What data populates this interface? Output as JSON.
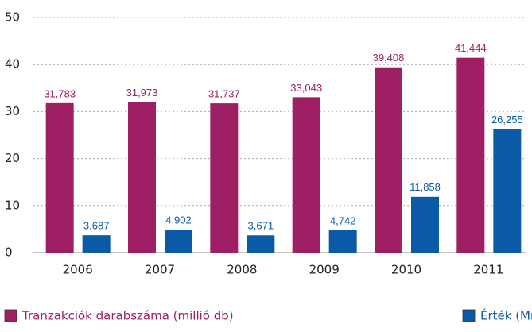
{
  "chart_data": {
    "type": "bar",
    "categories": [
      "2006",
      "2007",
      "2008",
      "2009",
      "2010",
      "2011"
    ],
    "series": [
      {
        "name": "Tranzakciók darabszáma (millió db)",
        "color": "#9e1f63",
        "values": [
          31.783,
          31.973,
          31.737,
          33.043,
          39.408,
          41.444
        ],
        "value_labels": [
          "31,783",
          "31,973",
          "31,737",
          "33,043",
          "39,408",
          "41,444"
        ]
      },
      {
        "name": "Érték (Mrd Ft)",
        "color": "#0a5aa8",
        "values": [
          3.687,
          4.902,
          3.671,
          4.742,
          11.858,
          26.255
        ],
        "value_labels": [
          "3,687",
          "4,902",
          "3,671",
          "4,742",
          "11,858",
          "26,255"
        ]
      }
    ],
    "ylim": [
      0,
      50
    ],
    "yticks": [
      0,
      10,
      20,
      30,
      40,
      50
    ],
    "grid": true,
    "legend": "bottom"
  }
}
